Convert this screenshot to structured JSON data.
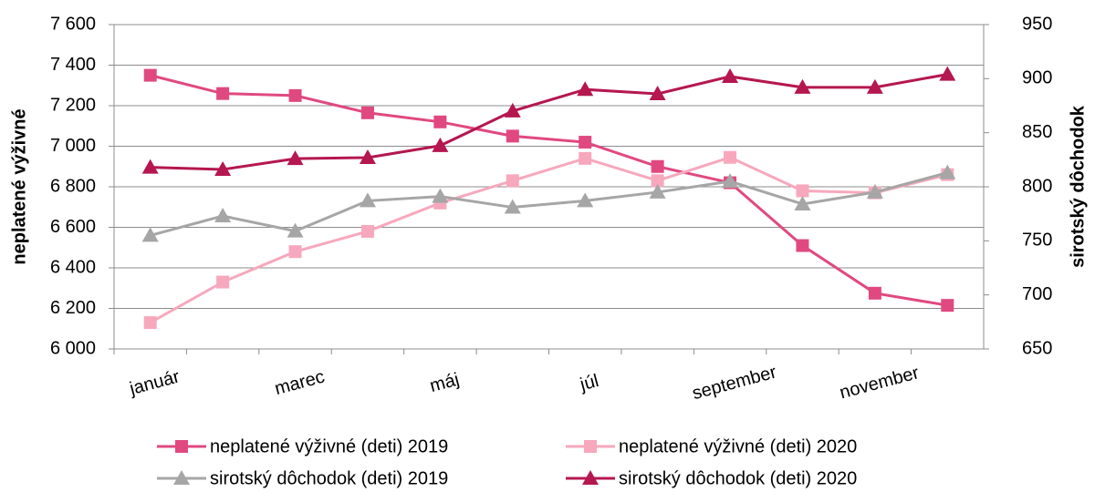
{
  "chart_data": {
    "type": "line",
    "categories": [
      "január",
      null,
      "marec",
      null,
      "máj",
      null,
      "júl",
      null,
      "september",
      null,
      "november",
      null
    ],
    "ylabel": "neplatené výživné",
    "y2label": "sirotský dôchodok",
    "ylim": [
      6000,
      7600
    ],
    "yticks": [
      {
        "value": 6000,
        "label": "6 000"
      },
      {
        "value": 6200,
        "label": "6 200"
      },
      {
        "value": 6400,
        "label": "6 400"
      },
      {
        "value": 6600,
        "label": "6 600"
      },
      {
        "value": 6800,
        "label": "6 800"
      },
      {
        "value": 7000,
        "label": "7 000"
      },
      {
        "value": 7200,
        "label": "7 200"
      },
      {
        "value": 7400,
        "label": "7 400"
      },
      {
        "value": 7600,
        "label": "7 600"
      }
    ],
    "y2lim": [
      650,
      950
    ],
    "y2ticks": [
      650,
      700,
      750,
      800,
      850,
      900,
      950
    ],
    "grid": true,
    "legend": "bottom",
    "series": [
      {
        "name": "neplatené výživné (deti) 2019",
        "color": "#e0497f",
        "marker": "square",
        "values": [
          7350,
          7260,
          7250,
          7165,
          7120,
          7050,
          7020,
          6900,
          6820,
          6510,
          6275,
          6215
        ]
      },
      {
        "name": "neplatené výživné (deti) 2020",
        "color": "#f7a8bd",
        "marker": "square",
        "values": [
          6130,
          6330,
          6480,
          6580,
          6720,
          6830,
          6940,
          6830,
          6945,
          6780,
          6770,
          6860
        ]
      },
      {
        "name": "sirotský dôchodok (deti) 2019",
        "color": "#a6a6a6",
        "marker": "triangle",
        "axis": "y2",
        "values": [
          755,
          773,
          759,
          787,
          791,
          781,
          787,
          795,
          805,
          784,
          795,
          813
        ]
      },
      {
        "name": "sirotský dôchodok (deti) 2020",
        "color": "#b5174f",
        "marker": "triangle",
        "axis": "y2",
        "values": [
          818,
          816,
          826,
          827,
          838,
          870,
          890,
          886,
          902,
          892,
          892,
          904
        ]
      }
    ]
  }
}
